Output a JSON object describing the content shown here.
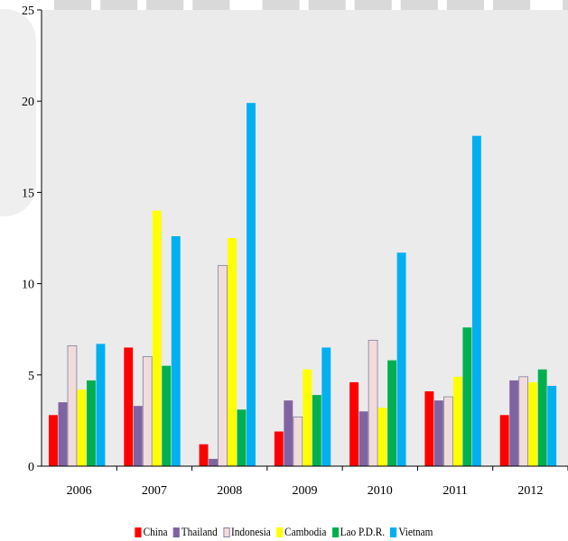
{
  "chart_data": {
    "type": "bar",
    "title": "",
    "xlabel": "",
    "ylabel": "",
    "categories": [
      "2006",
      "2007",
      "2008",
      "2009",
      "2010",
      "2011",
      "2012"
    ],
    "yticks": [
      "0",
      "5",
      "10",
      "15",
      "20",
      "25"
    ],
    "ylim": [
      0,
      25
    ],
    "grid": false,
    "legend_position": "bottom",
    "series": [
      {
        "name": "China",
        "color": "#ff0000",
        "values": [
          2.8,
          6.5,
          1.2,
          1.9,
          4.6,
          4.1,
          2.8
        ]
      },
      {
        "name": "Thailand",
        "color": "#8064a2",
        "values": [
          3.5,
          3.3,
          0.4,
          3.6,
          3.0,
          3.6,
          4.7
        ]
      },
      {
        "name": "Indonesia",
        "color": "#f2dcdb",
        "values": [
          6.6,
          6.0,
          11.0,
          2.7,
          6.9,
          3.8,
          4.9
        ]
      },
      {
        "name": "Cambodia",
        "color": "#ffff00",
        "values": [
          4.2,
          14.0,
          12.5,
          5.3,
          3.2,
          4.9,
          4.6
        ]
      },
      {
        "name": "Lao P.D.R.",
        "color": "#00b050",
        "values": [
          4.7,
          5.5,
          3.1,
          3.9,
          5.8,
          7.6,
          5.3
        ]
      },
      {
        "name": "Vietnam",
        "color": "#00b0f0",
        "values": [
          6.7,
          12.6,
          19.9,
          6.5,
          11.7,
          18.1,
          4.4
        ]
      }
    ]
  }
}
